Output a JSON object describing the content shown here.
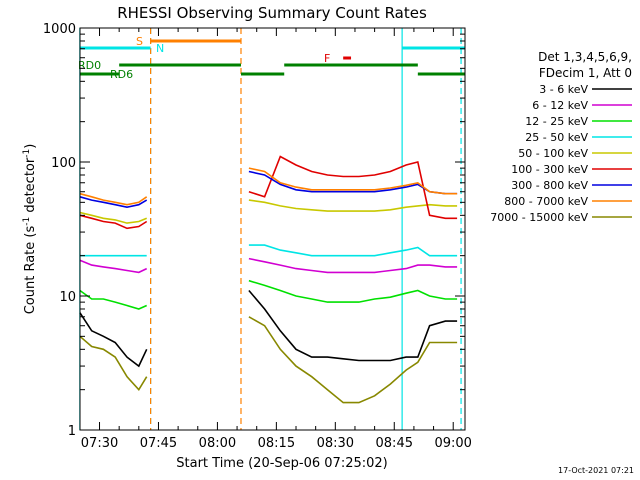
{
  "chart_data": {
    "type": "line",
    "title": "RHESSI Observing Summary Count Rates",
    "xlabel": "Start Time (20-Sep-06 07:25:02)",
    "ylabel_parts": [
      "Count Rate (s",
      "-1",
      " detector",
      "-1",
      ")"
    ],
    "yscale": "log",
    "ylim": [
      1,
      1000
    ],
    "xlim": [
      "07:25:02",
      "09:03:00"
    ],
    "y_ticks": [
      "1",
      "10",
      "100",
      "1000"
    ],
    "x_ticks": [
      "07:30",
      "07:45",
      "08:00",
      "08:15",
      "08:30",
      "08:45",
      "09:00"
    ],
    "legend_header": [
      "Det 1,3,4,5,6,9,",
      "FDecim 1, Att 0"
    ],
    "timestamp": "17-Oct-2021 07:21",
    "legend_position": "right",
    "series": [
      {
        "name": "3 - 6 keV",
        "color": "#000000",
        "x": [
          "07:25",
          "07:28",
          "07:31",
          "07:34",
          "07:37",
          "07:40",
          "07:42",
          "08:08",
          "08:12",
          "08:16",
          "08:20",
          "08:24",
          "08:28",
          "08:32",
          "08:36",
          "08:40",
          "08:44",
          "08:48",
          "08:51",
          "08:54",
          "08:58",
          "09:01"
        ],
        "y": [
          7.5,
          5.5,
          5,
          4.5,
          3.5,
          3,
          4,
          11,
          8,
          5.5,
          4,
          3.5,
          3.5,
          3.4,
          3.3,
          3.3,
          3.3,
          3.5,
          3.5,
          6,
          6.5,
          6.5
        ]
      },
      {
        "name": "6 - 12 keV",
        "color": "#d100d1",
        "x": [
          "07:25",
          "07:28",
          "07:31",
          "07:34",
          "07:37",
          "07:40",
          "07:42",
          "08:08",
          "08:12",
          "08:16",
          "08:20",
          "08:24",
          "08:28",
          "08:32",
          "08:36",
          "08:40",
          "08:44",
          "08:48",
          "08:51",
          "08:54",
          "08:58",
          "09:01"
        ],
        "y": [
          18.5,
          17,
          16.5,
          16,
          15.5,
          15,
          16,
          19,
          18,
          17,
          16,
          15.5,
          15,
          15,
          15,
          15,
          15.5,
          16,
          17,
          17,
          16.5,
          16.5
        ]
      },
      {
        "name": "12 - 25 keV",
        "color": "#00e000",
        "x": [
          "07:25",
          "07:28",
          "07:31",
          "07:34",
          "07:37",
          "07:40",
          "07:42",
          "08:08",
          "08:12",
          "08:16",
          "08:20",
          "08:24",
          "08:28",
          "08:32",
          "08:36",
          "08:40",
          "08:44",
          "08:48",
          "08:51",
          "08:54",
          "08:58",
          "09:01"
        ],
        "y": [
          11,
          9.5,
          9.5,
          9,
          8.5,
          8,
          8.5,
          13,
          12,
          11,
          10,
          9.5,
          9,
          9,
          9,
          9.5,
          9.8,
          10.5,
          11,
          10,
          9.5,
          9.5
        ]
      },
      {
        "name": "25 - 50 keV",
        "color": "#00e5e5",
        "x": [
          "07:25",
          "07:28",
          "07:31",
          "07:34",
          "07:37",
          "07:40",
          "07:42",
          "08:08",
          "08:12",
          "08:16",
          "08:20",
          "08:24",
          "08:28",
          "08:32",
          "08:36",
          "08:40",
          "08:44",
          "08:48",
          "08:51",
          "08:54",
          "08:58",
          "09:01"
        ],
        "y": [
          20,
          20,
          20,
          20,
          20,
          20,
          20,
          24,
          24,
          22,
          21,
          20,
          20,
          20,
          20,
          20,
          21,
          22,
          23,
          20,
          20,
          20
        ]
      },
      {
        "name": "50 - 100 keV",
        "color": "#c8c800",
        "x": [
          "07:25",
          "07:28",
          "07:31",
          "07:34",
          "07:37",
          "07:40",
          "07:42",
          "08:08",
          "08:12",
          "08:16",
          "08:20",
          "08:24",
          "08:28",
          "08:32",
          "08:36",
          "08:40",
          "08:44",
          "08:48",
          "08:51",
          "08:54",
          "08:58",
          "09:01"
        ],
        "y": [
          42,
          40,
          38,
          37,
          35,
          36,
          38,
          52,
          50,
          47,
          45,
          44,
          43,
          43,
          43,
          43,
          44,
          46,
          47,
          48,
          47,
          47
        ]
      },
      {
        "name": "100 - 300 keV",
        "color": "#e00000",
        "x": [
          "07:25",
          "07:28",
          "07:31",
          "07:34",
          "07:37",
          "07:40",
          "07:42",
          "08:08",
          "08:12",
          "08:16",
          "08:20",
          "08:24",
          "08:28",
          "08:32",
          "08:36",
          "08:40",
          "08:44",
          "08:48",
          "08:51",
          "08:54",
          "08:58",
          "09:01"
        ],
        "y": [
          40,
          38,
          36,
          35,
          32,
          33,
          36,
          60,
          55,
          110,
          95,
          85,
          80,
          78,
          78,
          80,
          85,
          95,
          100,
          40,
          38,
          38
        ]
      },
      {
        "name": "300 - 800 keV",
        "color": "#0000e0",
        "x": [
          "07:25",
          "07:28",
          "07:31",
          "07:34",
          "07:37",
          "07:40",
          "07:42",
          "08:08",
          "08:12",
          "08:16",
          "08:20",
          "08:24",
          "08:28",
          "08:32",
          "08:36",
          "08:40",
          "08:44",
          "08:48",
          "08:51",
          "08:54",
          "08:58",
          "09:01"
        ],
        "y": [
          55,
          52,
          50,
          48,
          46,
          48,
          52,
          85,
          80,
          68,
          62,
          60,
          60,
          60,
          60,
          60,
          62,
          65,
          68,
          60,
          58,
          58
        ]
      },
      {
        "name": "800 - 7000 keV",
        "color": "#ff8000",
        "x": [
          "07:25",
          "07:28",
          "07:31",
          "07:34",
          "07:37",
          "07:40",
          "07:42",
          "08:08",
          "08:12",
          "08:16",
          "08:20",
          "08:24",
          "08:28",
          "08:32",
          "08:36",
          "08:40",
          "08:44",
          "08:48",
          "08:51",
          "08:54",
          "08:58",
          "09:01"
        ],
        "y": [
          58,
          55,
          52,
          50,
          48,
          50,
          55,
          90,
          85,
          70,
          65,
          62,
          62,
          62,
          62,
          62,
          64,
          67,
          70,
          60,
          58,
          58
        ]
      },
      {
        "name": "7000 - 15000 keV",
        "color": "#888800",
        "x": [
          "07:25",
          "07:28",
          "07:31",
          "07:34",
          "07:37",
          "07:40",
          "07:42",
          "08:08",
          "08:12",
          "08:16",
          "08:20",
          "08:24",
          "08:28",
          "08:32",
          "08:36",
          "08:40",
          "08:44",
          "08:48",
          "08:51",
          "08:54",
          "08:58",
          "09:01"
        ],
        "y": [
          5,
          4.2,
          4,
          3.5,
          2.5,
          2,
          2.5,
          7,
          6,
          4,
          3,
          2.5,
          2,
          1.6,
          1.6,
          1.8,
          2.2,
          2.8,
          3.2,
          4.5,
          4.5,
          4.5
        ]
      }
    ],
    "flags": [
      {
        "label": "S",
        "color": "#ff8000",
        "segments": [
          [
            "07:43",
            "08:06"
          ]
        ]
      },
      {
        "label": "N",
        "color": "#00e5e5",
        "segments": [
          [
            "07:25",
            "07:43"
          ],
          [
            "08:47",
            "09:03"
          ]
        ]
      },
      {
        "label": "F",
        "color": "#e00000",
        "segments": [
          [
            "08:32",
            "08:34"
          ]
        ]
      },
      {
        "label": "RD0",
        "color": "#008000",
        "segments": [
          [
            "07:35",
            "08:06"
          ],
          [
            "08:17",
            "08:51"
          ]
        ]
      },
      {
        "label": "RD6",
        "color": "#008000",
        "segments": [
          [
            "07:25",
            "07:35"
          ],
          [
            "08:06",
            "08:17"
          ],
          [
            "08:51",
            "09:03"
          ]
        ]
      }
    ],
    "vertical_markers": [
      {
        "time": "07:25",
        "color": "#00e5e5",
        "style": "solid"
      },
      {
        "time": "07:43",
        "color": "#00e5e5",
        "style": "dashed"
      },
      {
        "time": "07:43",
        "color": "#ff8000",
        "style": "dashed"
      },
      {
        "time": "08:06",
        "color": "#ff8000",
        "style": "dashed"
      },
      {
        "time": "08:47",
        "color": "#00e5e5",
        "style": "solid"
      },
      {
        "time": "09:02",
        "color": "#00e5e5",
        "style": "dashed"
      }
    ],
    "grid": false
  }
}
